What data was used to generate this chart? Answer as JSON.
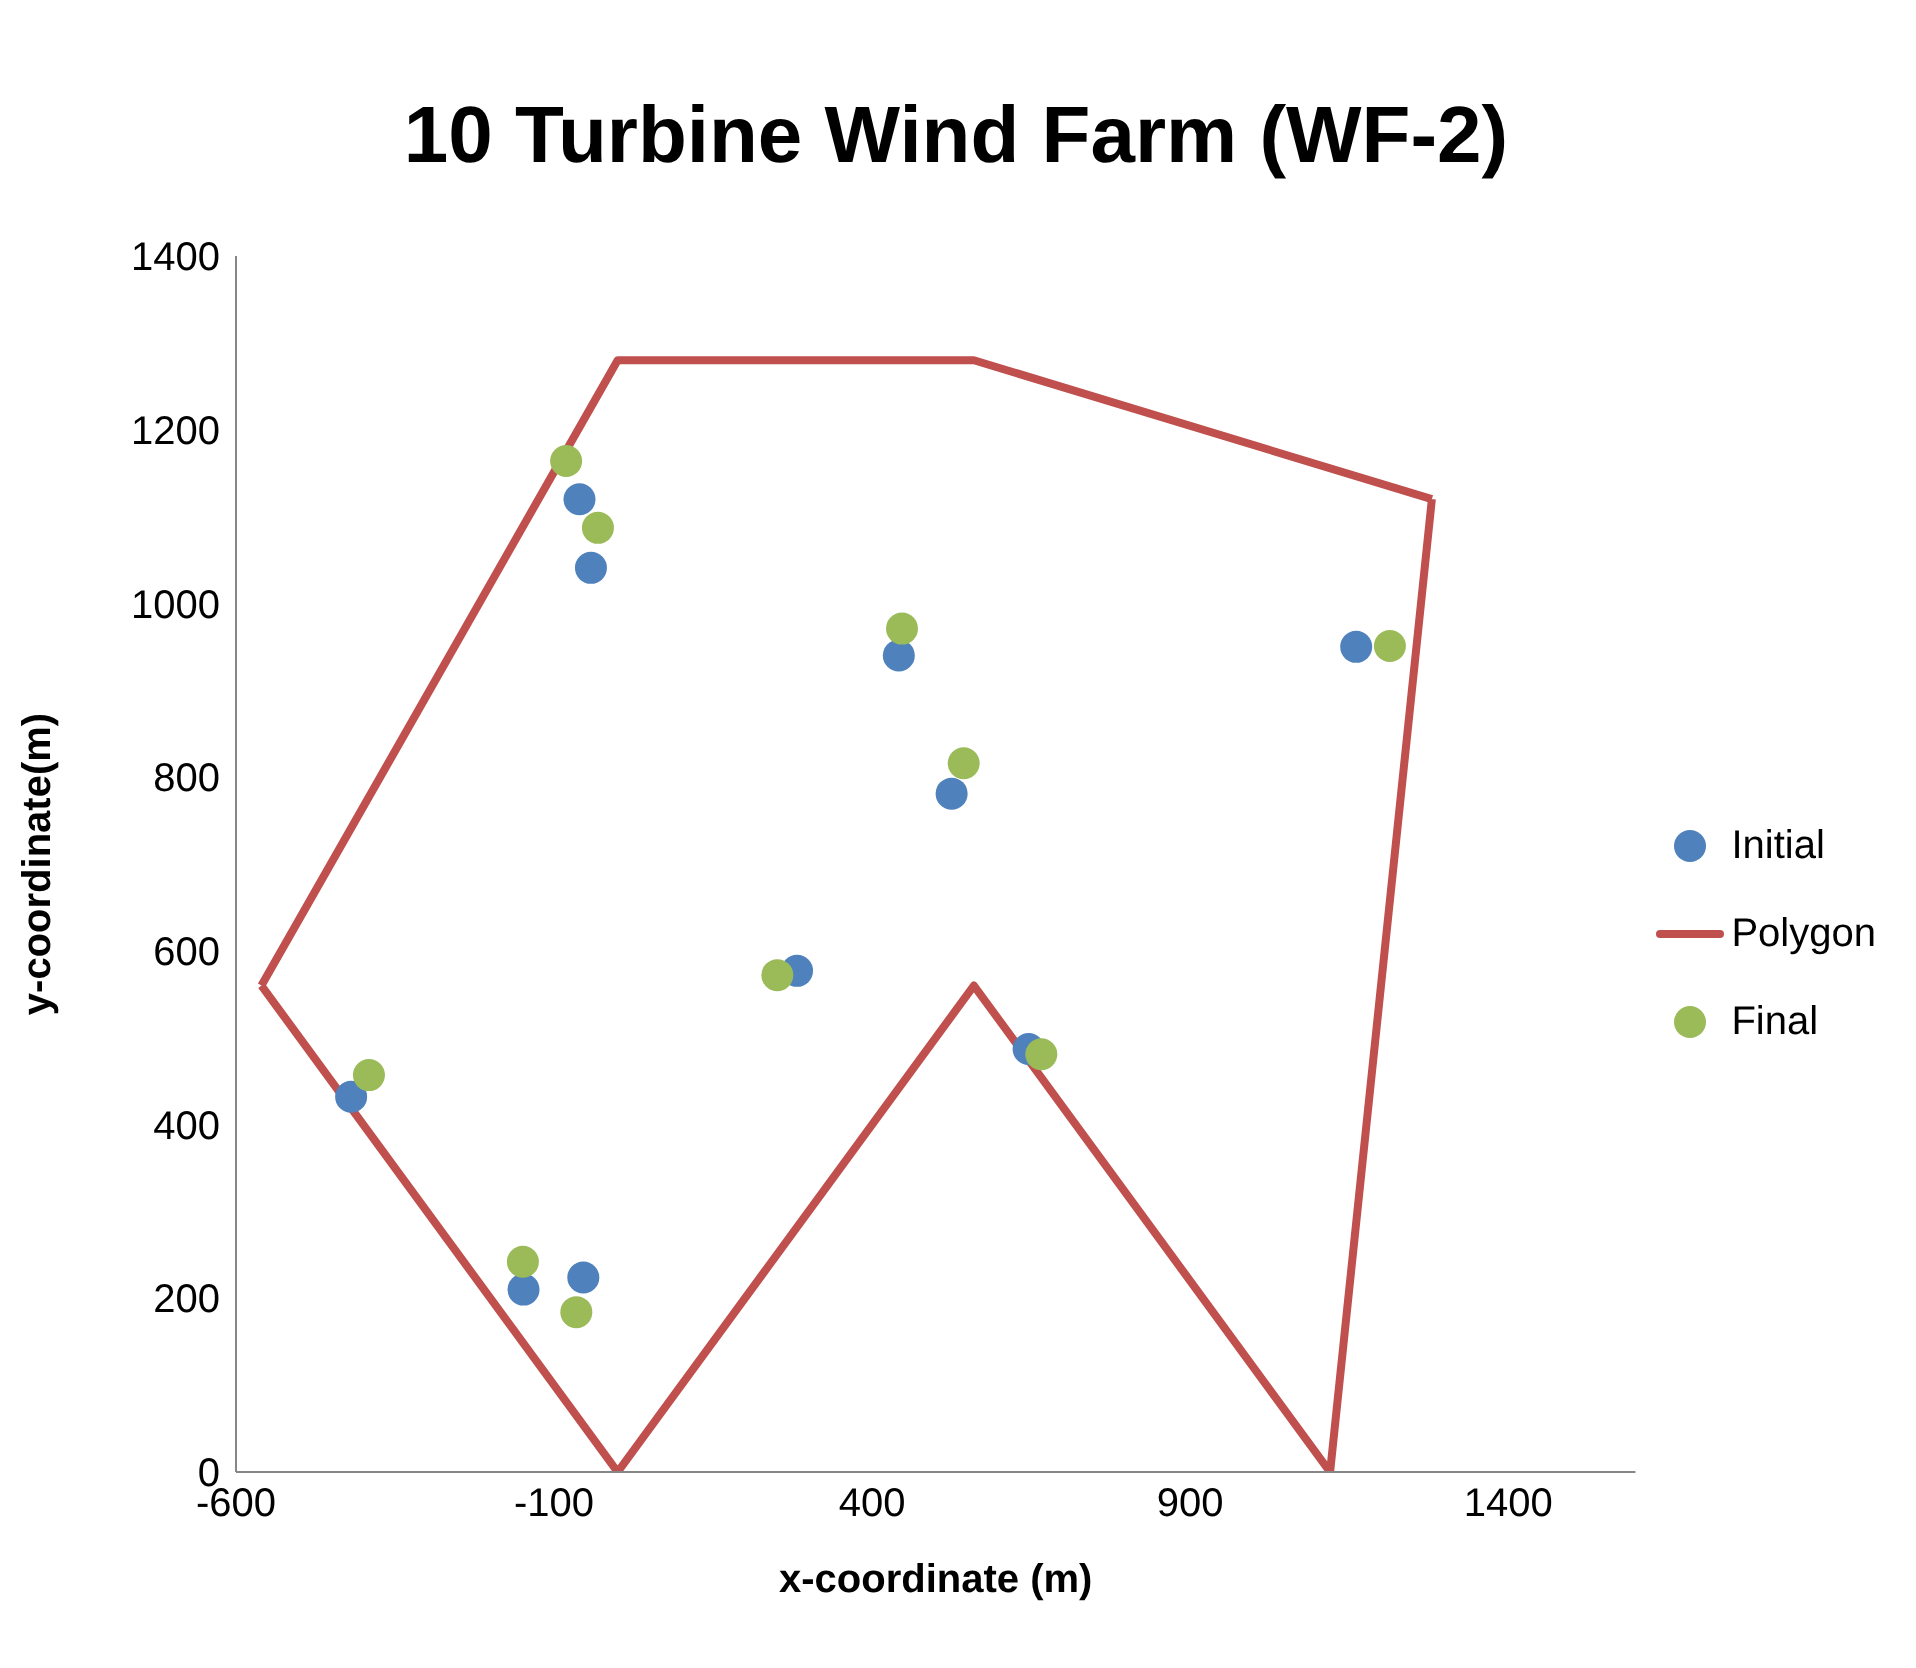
{
  "chart_data": {
    "type": "scatter",
    "title": "10 Turbine Wind Farm (WF-2)",
    "xlabel": "x-coordinate (m)",
    "ylabel": "y-coordinate(m)",
    "xlim": [
      -600,
      1600
    ],
    "xticks": [
      -600,
      -100,
      400,
      900,
      1400
    ],
    "ylim": [
      0,
      1400
    ],
    "yticks": [
      0,
      200,
      400,
      600,
      800,
      1000,
      1200,
      1400
    ],
    "legend": "right",
    "marker": "circle",
    "series": [
      {
        "name": "Initial",
        "color": "#4f81bd",
        "x": [
          -60,
          -42,
          442,
          525,
          282,
          -419,
          -148,
          -54,
          646,
          1161
        ],
        "values": [
          1120,
          1041,
          940,
          781,
          577,
          432,
          210,
          224,
          487,
          950
        ]
      },
      {
        "name": "Polygon",
        "type": "line",
        "marker": "none",
        "line_style": "solid",
        "color": "#c0504d",
        "x": [
          -560,
          0,
          560,
          1280
        ],
        "values": [
          560,
          1280,
          1280,
          1120
        ]
      },
      {
        "type": "line",
        "marker": "none",
        "line_style": "solid",
        "color": "#c0504d",
        "x": [
          -560,
          0,
          560,
          1120,
          1280
        ],
        "values": [
          560,
          0,
          560,
          0,
          1120
        ]
      },
      {
        "name": "Final",
        "color": "#9bbb59",
        "x": [
          -81,
          -31,
          447,
          544,
          251,
          -391,
          -149,
          -65,
          666,
          1214
        ],
        "values": [
          1164,
          1087,
          971,
          816,
          572,
          457,
          242,
          184,
          481,
          951
        ]
      }
    ]
  }
}
